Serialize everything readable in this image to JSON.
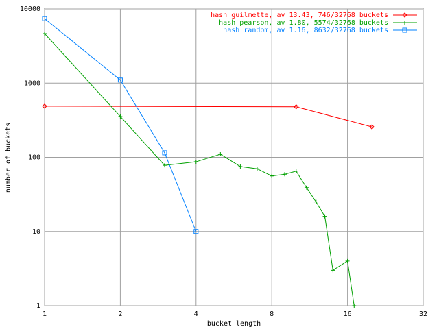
{
  "chart_data": {
    "type": "line",
    "xlabel": "bucket length",
    "ylabel": "number of buckets",
    "xlog": true,
    "ylog": true,
    "grid": true,
    "legend": "top-right",
    "xlim": [
      1,
      32
    ],
    "xticks": [
      1,
      2,
      4,
      8,
      16,
      32
    ],
    "ylim": [
      1,
      10000
    ],
    "yticks": [
      1,
      10,
      100,
      1000,
      10000
    ],
    "series": [
      {
        "name": "hash guilmette, av 13.43, 746/32768 buckets",
        "color": "#ff0000",
        "marker": "diamond",
        "x": [
          1,
          10,
          20
        ],
        "values": [
          489,
          480,
          257
        ]
      },
      {
        "name": "hash pearson, av 1.80, 5574/32768 buckets",
        "color": "#00a000",
        "marker": "plus",
        "x": [
          1,
          2,
          3,
          4,
          5,
          6,
          7,
          8,
          9,
          10,
          11,
          12,
          13,
          14,
          16,
          17
        ],
        "values": [
          4650,
          355,
          78,
          87,
          110,
          75,
          70,
          56,
          59,
          65,
          39,
          25,
          16,
          3,
          4,
          1
        ]
      },
      {
        "name": "hash random, av 1.16, 8632/32768 buckets",
        "color": "#0080ff",
        "marker": "square",
        "x": [
          1,
          2,
          3,
          4
        ],
        "values": [
          7400,
          1100,
          115,
          10
        ]
      }
    ]
  }
}
